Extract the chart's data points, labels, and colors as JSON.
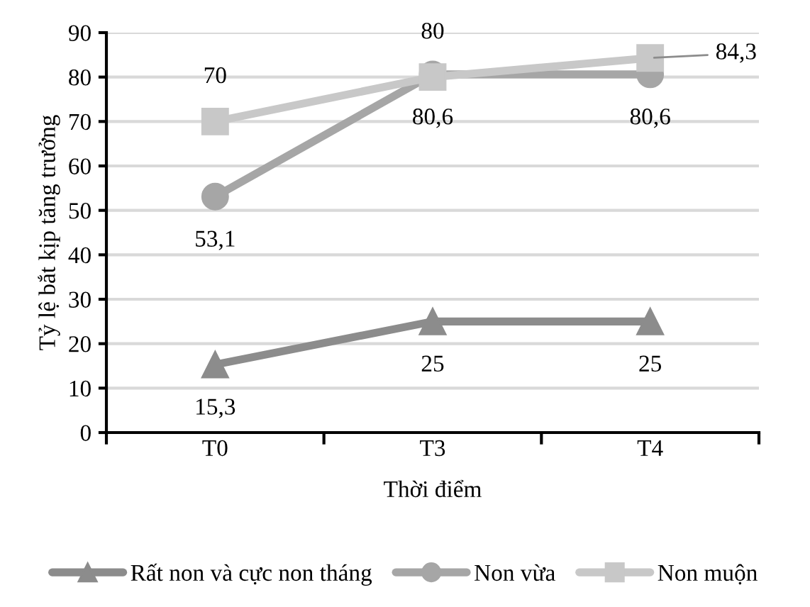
{
  "chart_data": {
    "type": "line",
    "xlabel": "Thời điểm",
    "ylabel": "Tỷ lệ bắt kịp tăng trưởng",
    "categories": [
      "T0",
      "T3",
      "T4"
    ],
    "ylim": [
      0,
      90
    ],
    "yticks": [
      0,
      10,
      20,
      30,
      40,
      50,
      60,
      70,
      80,
      90
    ],
    "grid": "y",
    "legend": "bottom",
    "series": [
      {
        "name": "Rất non và cực non tháng",
        "color": "#8c8c8c",
        "marker": "triangle",
        "values": [
          15.3,
          25,
          25
        ],
        "value_labels": [
          "15,3",
          "25",
          "25"
        ]
      },
      {
        "name": "Non vừa",
        "color": "#a6a6a6",
        "marker": "circle",
        "values": [
          53.1,
          80.6,
          80.6
        ],
        "value_labels": [
          "53,1",
          "80,6",
          "80,6"
        ]
      },
      {
        "name": "Non muộn",
        "color": "#c8c8c8",
        "marker": "square",
        "values": [
          70,
          80,
          84.3
        ],
        "value_labels": [
          "70",
          "80",
          "84,3"
        ]
      }
    ]
  }
}
